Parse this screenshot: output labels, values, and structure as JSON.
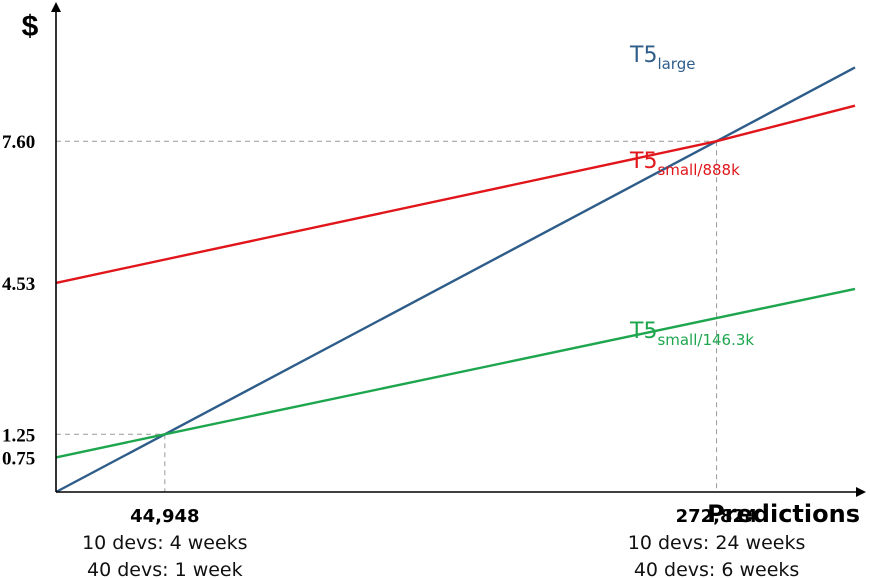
{
  "chart_data": {
    "type": "line",
    "xlabel": "Predictions",
    "ylabel": "$",
    "xlim": [
      0,
      330000
    ],
    "ylim": [
      0,
      10.4
    ],
    "grid": false,
    "y_ticks": [
      {
        "value": 0.75,
        "label": "0.75"
      },
      {
        "value": 1.25,
        "label": "1.25"
      },
      {
        "value": 4.53,
        "label": "4.53"
      },
      {
        "value": 7.6,
        "label": "7.60"
      }
    ],
    "x_ticks": [
      {
        "value": 44948,
        "label": "44,948",
        "notes": [
          "10 devs: 4 weeks",
          "40 devs: 1 week"
        ]
      },
      {
        "value": 272824,
        "label": "272,824",
        "notes": [
          "10 devs: 24 weeks",
          "40 devs: 6 weeks"
        ]
      }
    ],
    "series": [
      {
        "name": "T5",
        "sub": "large",
        "color": "#2f5d8a",
        "x": [
          0,
          44948,
          272824,
          330000
        ],
        "y": [
          0,
          1.25,
          7.6,
          9.2
        ]
      },
      {
        "name": "T5",
        "sub": "small/888k",
        "color": "#e0161b",
        "x": [
          0,
          272824,
          330000
        ],
        "y": [
          4.53,
          7.6,
          8.37
        ]
      },
      {
        "name": "T5",
        "sub": "small/146.3k",
        "color": "#1ea64f",
        "x": [
          0,
          44948,
          330000
        ],
        "y": [
          0.75,
          1.25,
          4.4
        ]
      }
    ],
    "reference_points": [
      {
        "x": 44948,
        "y": 1.25
      },
      {
        "x": 272824,
        "y": 7.6
      }
    ]
  }
}
